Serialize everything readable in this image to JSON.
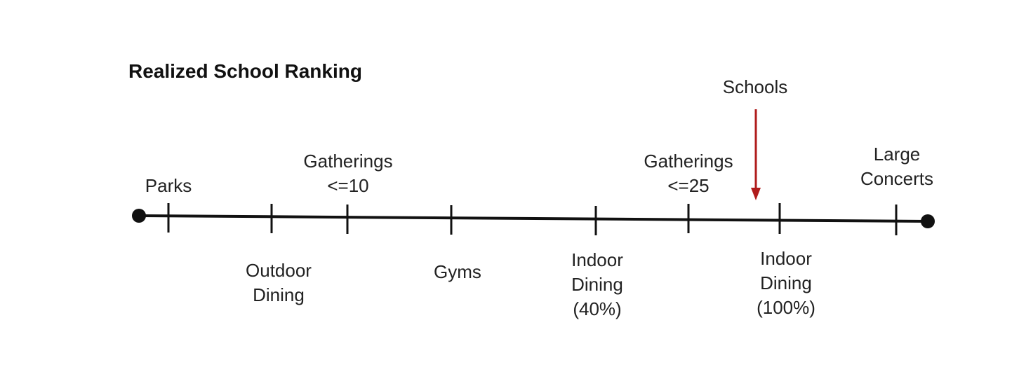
{
  "title": "Realized School Ranking",
  "marker": {
    "label": "Schools",
    "color": "#b01c1c"
  },
  "items_above": [
    {
      "lines": [
        "Parks"
      ]
    },
    {
      "lines": [
        "Gatherings",
        "<=10"
      ]
    },
    {
      "lines": [
        "Gatherings",
        "<=25"
      ]
    },
    {
      "lines": [
        "Large",
        "Concerts"
      ]
    }
  ],
  "items_below": [
    {
      "lines": [
        "Outdoor",
        "Dining"
      ]
    },
    {
      "lines": [
        "Gyms"
      ]
    },
    {
      "lines": [
        "Indoor",
        "Dining",
        "(40%)"
      ]
    },
    {
      "lines": [
        "Indoor",
        "Dining",
        "(100%)"
      ]
    }
  ],
  "colors": {
    "line": "#111111",
    "text": "#222222"
  }
}
